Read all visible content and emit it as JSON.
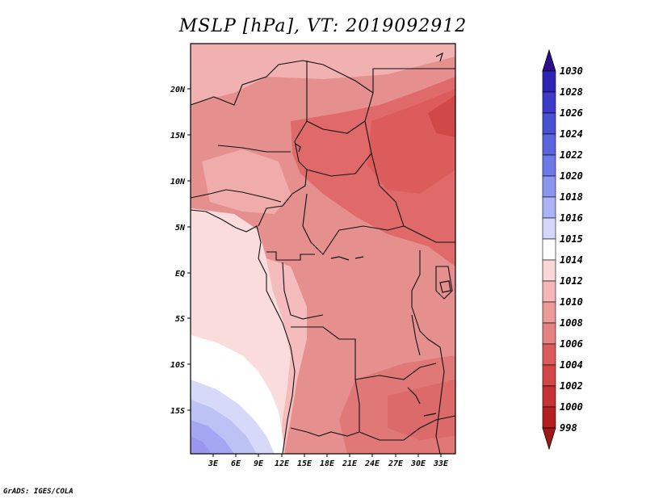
{
  "title": "MSLP [hPa], VT: 2019092912",
  "footer": "GrADS: IGES/COLA",
  "map": {
    "lat_labels": [
      "20N",
      "15N",
      "10N",
      "5N",
      "EQ",
      "5S",
      "10S",
      "15S"
    ],
    "lon_labels": [
      "3E",
      "6E",
      "9E",
      "12E",
      "15E",
      "18E",
      "21E",
      "24E",
      "27E",
      "30E",
      "33E"
    ]
  },
  "colorbar": {
    "labels": [
      "1030",
      "1028",
      "1026",
      "1024",
      "1022",
      "1020",
      "1018",
      "1016",
      "1015",
      "1014",
      "1012",
      "1010",
      "1008",
      "1006",
      "1004",
      "1002",
      "1000",
      "998"
    ],
    "colors": [
      "#3014a0",
      "#2e24b4",
      "#3c3cc8",
      "#4a50d2",
      "#5a64dc",
      "#6e78e6",
      "#8a96f0",
      "#aab4f6",
      "#d4d8fa",
      "#ffffff",
      "#fbd8d8",
      "#f4b6b6",
      "#ec9a9a",
      "#e48282",
      "#dc5c5c",
      "#d24646",
      "#c43232",
      "#b42020"
    ],
    "top_color": "#2a0e8c",
    "bottom_color": "#a01818"
  }
}
